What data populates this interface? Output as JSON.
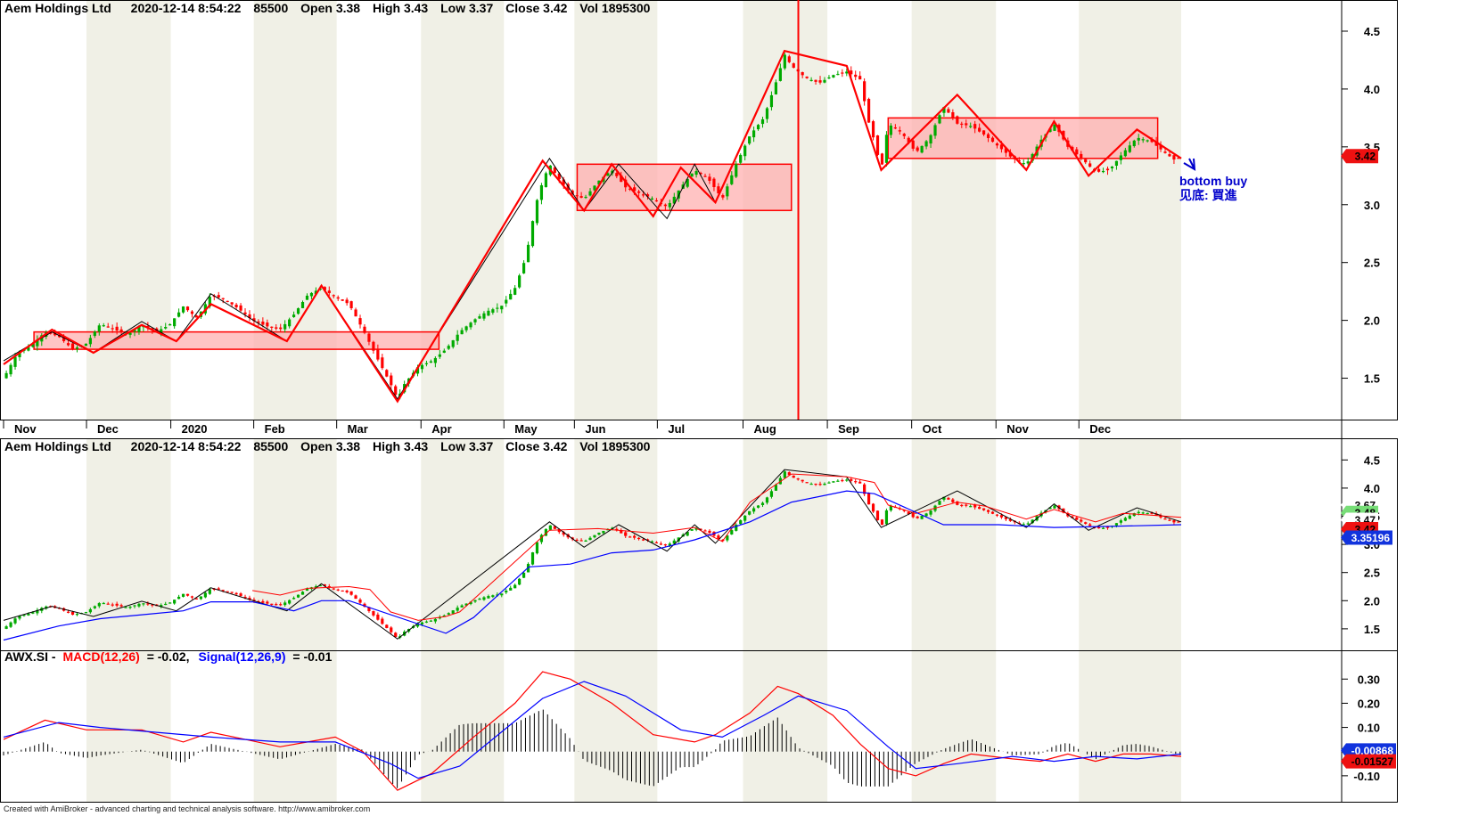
{
  "panes": {
    "price_header": {
      "name": "Aem Holdings Ltd",
      "datetime": "2020-12-14 8:54:22",
      "code": "85500",
      "open_label": "Open 3.38",
      "high_label": "High 3.43",
      "low_label": "Low 3.37",
      "close_label": "Close 3.42",
      "vol_label": "Vol 1895300"
    },
    "band_header": {
      "name": "Aem Holdings Ltd",
      "datetime": "2020-12-14 8:54:22",
      "code": "85500",
      "open_label": "Open 3.38",
      "high_label": "High 3.43",
      "low_label": "Low 3.37",
      "close_label": "Close 3.42",
      "vol_label": "Vol 1895300"
    },
    "macd_header": {
      "symbol": "AWX.SI -",
      "macd_label": "MACD(12,26)",
      "macd_value": "= -0.02,",
      "signal_label": "Signal(12,26,9)",
      "signal_value": "= -0.01"
    }
  },
  "annotation": {
    "line1": "bottom buy",
    "line2": "见底: 買進"
  },
  "footer": "Created with AmiBroker - advanced charting and technical analysis software. http://www.amibroker.com",
  "tags": {
    "price_last": "3.42",
    "band_values": [
      "3.67",
      "3.48",
      "3.48",
      "3.47",
      "3.42",
      "3.35196"
    ],
    "macd_values": [
      "-0.00868",
      "-0.01527"
    ]
  },
  "colors": {
    "up_candle": "#00aa00",
    "down_candle": "#ff0000",
    "zigzag_red": "#ff0000",
    "zigzag_black": "#000000",
    "box_fill": "#ffb0b0",
    "box_stroke": "#ff0000",
    "macd_line": "#ff0000",
    "signal_line": "#0000ff",
    "band_upper": "#ff0000",
    "band_lower": "#0000ff",
    "shade_alt": "#f0f0e6",
    "annotation": "#0000cc"
  },
  "chart_data": [
    {
      "type": "candlestick",
      "title": "Aem Holdings Ltd",
      "x_labels": [
        "Nov",
        "Dec",
        "2020",
        "Feb",
        "Mar",
        "Apr",
        "May",
        "Jun",
        "Jul",
        "Aug",
        "Sep",
        "Oct",
        "Nov",
        "Dec"
      ],
      "yticks": [
        1.5,
        2.0,
        2.5,
        3.0,
        3.5,
        4.0,
        4.5
      ],
      "ylim": [
        1.15,
        4.6
      ],
      "close_path": [
        [
          0,
          1.5
        ],
        [
          10,
          1.72
        ],
        [
          20,
          1.78
        ],
        [
          30,
          1.9
        ],
        [
          40,
          1.86
        ],
        [
          50,
          1.75
        ],
        [
          60,
          1.8
        ],
        [
          70,
          1.97
        ],
        [
          80,
          1.92
        ],
        [
          90,
          1.88
        ],
        [
          100,
          1.96
        ],
        [
          110,
          1.9
        ],
        [
          120,
          1.96
        ],
        [
          130,
          2.12
        ],
        [
          140,
          2.02
        ],
        [
          150,
          2.22
        ],
        [
          160,
          2.18
        ],
        [
          170,
          2.1
        ],
        [
          180,
          2.0
        ],
        [
          190,
          1.95
        ],
        [
          200,
          1.92
        ],
        [
          210,
          2.05
        ],
        [
          220,
          2.22
        ],
        [
          230,
          2.28
        ],
        [
          240,
          2.2
        ],
        [
          250,
          2.14
        ],
        [
          260,
          1.92
        ],
        [
          270,
          1.68
        ],
        [
          280,
          1.45
        ],
        [
          285,
          1.32
        ],
        [
          290,
          1.45
        ],
        [
          300,
          1.6
        ],
        [
          310,
          1.65
        ],
        [
          320,
          1.75
        ],
        [
          330,
          1.9
        ],
        [
          340,
          2.0
        ],
        [
          350,
          2.08
        ],
        [
          360,
          2.12
        ],
        [
          370,
          2.28
        ],
        [
          378,
          2.55
        ],
        [
          385,
          3.0
        ],
        [
          390,
          3.2
        ],
        [
          395,
          3.35
        ],
        [
          400,
          3.25
        ],
        [
          410,
          3.1
        ],
        [
          420,
          3.05
        ],
        [
          430,
          3.2
        ],
        [
          440,
          3.3
        ],
        [
          450,
          3.15
        ],
        [
          460,
          3.1
        ],
        [
          470,
          3.05
        ],
        [
          480,
          2.98
        ],
        [
          490,
          3.15
        ],
        [
          500,
          3.3
        ],
        [
          510,
          3.22
        ],
        [
          520,
          3.05
        ],
        [
          530,
          3.35
        ],
        [
          540,
          3.6
        ],
        [
          550,
          3.75
        ],
        [
          560,
          4.1
        ],
        [
          565,
          4.3
        ],
        [
          570,
          4.2
        ],
        [
          580,
          4.1
        ],
        [
          590,
          4.05
        ],
        [
          600,
          4.12
        ],
        [
          610,
          4.15
        ],
        [
          620,
          4.08
        ],
        [
          625,
          3.75
        ],
        [
          630,
          3.55
        ],
        [
          635,
          3.3
        ],
        [
          640,
          3.7
        ],
        [
          650,
          3.62
        ],
        [
          660,
          3.45
        ],
        [
          670,
          3.58
        ],
        [
          680,
          3.85
        ],
        [
          690,
          3.7
        ],
        [
          700,
          3.68
        ],
        [
          710,
          3.6
        ],
        [
          720,
          3.5
        ],
        [
          730,
          3.4
        ],
        [
          740,
          3.35
        ],
        [
          750,
          3.55
        ],
        [
          760,
          3.7
        ],
        [
          770,
          3.5
        ],
        [
          780,
          3.4
        ],
        [
          790,
          3.28
        ],
        [
          800,
          3.3
        ],
        [
          810,
          3.45
        ],
        [
          820,
          3.58
        ],
        [
          830,
          3.55
        ],
        [
          840,
          3.45
        ],
        [
          848,
          3.38
        ],
        [
          852,
          3.42
        ]
      ],
      "series": [
        {
          "name": "",
          "kind": "zigzag",
          "color": "red",
          "points": [
            [
              0,
              1.62
            ],
            [
              35,
              1.92
            ],
            [
              65,
              1.72
            ],
            [
              100,
              1.96
            ],
            [
              125,
              1.82
            ],
            [
              150,
              2.14
            ],
            [
              205,
              1.82
            ],
            [
              230,
              2.3
            ],
            [
              285,
              1.3
            ],
            [
              390,
              3.38
            ],
            [
              420,
              2.95
            ],
            [
              440,
              3.35
            ],
            [
              470,
              2.9
            ],
            [
              490,
              3.32
            ],
            [
              515,
              3.02
            ],
            [
              565,
              4.33
            ],
            [
              610,
              4.2
            ],
            [
              635,
              3.3
            ],
            [
              690,
              3.95
            ],
            [
              740,
              3.3
            ],
            [
              760,
              3.72
            ],
            [
              785,
              3.25
            ],
            [
              820,
              3.65
            ],
            [
              852,
              3.4
            ]
          ]
        },
        {
          "name": "",
          "kind": "zigzag",
          "color": "black",
          "points": [
            [
              0,
              1.65
            ],
            [
              35,
              1.9
            ],
            [
              65,
              1.72
            ],
            [
              100,
              1.99
            ],
            [
              125,
              1.82
            ],
            [
              150,
              2.23
            ],
            [
              205,
              1.82
            ],
            [
              230,
              2.3
            ],
            [
              285,
              1.32
            ],
            [
              395,
              3.4
            ],
            [
              420,
              2.95
            ],
            [
              445,
              3.35
            ],
            [
              480,
              2.88
            ],
            [
              500,
              3.35
            ],
            [
              515,
              3.02
            ],
            [
              565,
              4.33
            ],
            [
              610,
              4.2
            ],
            [
              635,
              3.3
            ],
            [
              690,
              3.95
            ],
            [
              740,
              3.3
            ],
            [
              760,
              3.72
            ],
            [
              785,
              3.25
            ],
            [
              820,
              3.65
            ],
            [
              852,
              3.4
            ]
          ]
        }
      ],
      "boxes": [
        {
          "x0": 22,
          "x1": 315,
          "y0": 1.75,
          "y1": 1.9
        },
        {
          "x0": 415,
          "x1": 570,
          "y0": 2.95,
          "y1": 3.35
        },
        {
          "x0": 640,
          "x1": 835,
          "y0": 3.4,
          "y1": 3.75
        }
      ],
      "vertical_marker_x": 575
    },
    {
      "type": "candlestick",
      "title": "Aem Holdings Ltd",
      "yticks": [
        1.5,
        2.0,
        2.5,
        3.0,
        3.5,
        4.0,
        4.5
      ],
      "ylim": [
        1.15,
        4.6
      ],
      "series": [
        {
          "name": "",
          "kind": "upper-band",
          "color": "red",
          "points": [
            [
              180,
              2.18
            ],
            [
              200,
              2.1
            ],
            [
              220,
              2.22
            ],
            [
              250,
              2.25
            ],
            [
              265,
              2.2
            ],
            [
              280,
              1.8
            ],
            [
              300,
              1.65
            ],
            [
              320,
              1.72
            ],
            [
              330,
              1.8
            ],
            [
              395,
              3.25
            ],
            [
              430,
              3.28
            ],
            [
              470,
              3.2
            ],
            [
              500,
              3.3
            ],
            [
              520,
              3.05
            ],
            [
              540,
              3.75
            ],
            [
              570,
              4.25
            ],
            [
              610,
              4.2
            ],
            [
              630,
              4.1
            ],
            [
              640,
              3.7
            ],
            [
              660,
              3.55
            ],
            [
              690,
              3.75
            ],
            [
              710,
              3.68
            ],
            [
              740,
              3.45
            ],
            [
              760,
              3.62
            ],
            [
              790,
              3.4
            ],
            [
              810,
              3.55
            ],
            [
              830,
              3.52
            ],
            [
              852,
              3.48
            ]
          ]
        },
        {
          "name": "",
          "kind": "lower-band",
          "color": "blue",
          "points": [
            [
              0,
              1.3
            ],
            [
              40,
              1.55
            ],
            [
              70,
              1.68
            ],
            [
              100,
              1.75
            ],
            [
              130,
              1.82
            ],
            [
              150,
              1.98
            ],
            [
              180,
              1.98
            ],
            [
              210,
              1.82
            ],
            [
              230,
              2.0
            ],
            [
              250,
              2.0
            ],
            [
              320,
              1.42
            ],
            [
              340,
              1.7
            ],
            [
              380,
              2.6
            ],
            [
              410,
              2.65
            ],
            [
              440,
              2.85
            ],
            [
              470,
              2.9
            ],
            [
              500,
              3.08
            ],
            [
              540,
              3.4
            ],
            [
              570,
              3.75
            ],
            [
              610,
              3.95
            ],
            [
              630,
              3.9
            ],
            [
              680,
              3.35
            ],
            [
              720,
              3.35
            ],
            [
              760,
              3.3
            ],
            [
              800,
              3.32
            ],
            [
              852,
              3.35
            ]
          ]
        }
      ]
    },
    {
      "type": "line",
      "title": "",
      "yticks": [
        -0.1,
        0.1,
        0.2,
        0.3
      ],
      "ylim": [
        -0.2,
        0.36
      ],
      "series": [
        {
          "name": "MACD(12,26)",
          "color": "red",
          "points": [
            [
              0,
              0.05
            ],
            [
              30,
              0.13
            ],
            [
              60,
              0.09
            ],
            [
              100,
              0.09
            ],
            [
              130,
              0.04
            ],
            [
              150,
              0.08
            ],
            [
              175,
              0.05
            ],
            [
              200,
              0.02
            ],
            [
              220,
              0.04
            ],
            [
              240,
              0.06
            ],
            [
              260,
              0.0
            ],
            [
              285,
              -0.16
            ],
            [
              310,
              -0.09
            ],
            [
              340,
              0.06
            ],
            [
              370,
              0.2
            ],
            [
              390,
              0.33
            ],
            [
              410,
              0.3
            ],
            [
              440,
              0.2
            ],
            [
              470,
              0.07
            ],
            [
              500,
              0.04
            ],
            [
              515,
              0.07
            ],
            [
              540,
              0.16
            ],
            [
              560,
              0.27
            ],
            [
              575,
              0.24
            ],
            [
              600,
              0.15
            ],
            [
              620,
              0.03
            ],
            [
              640,
              -0.07
            ],
            [
              660,
              -0.1
            ],
            [
              680,
              -0.05
            ],
            [
              700,
              -0.01
            ],
            [
              730,
              -0.03
            ],
            [
              750,
              -0.04
            ],
            [
              770,
              -0.01
            ],
            [
              790,
              -0.04
            ],
            [
              810,
              -0.01
            ],
            [
              830,
              -0.01
            ],
            [
              852,
              -0.02
            ]
          ]
        },
        {
          "name": "Signal(12,26,9)",
          "color": "blue",
          "points": [
            [
              0,
              0.06
            ],
            [
              40,
              0.12
            ],
            [
              70,
              0.1
            ],
            [
              110,
              0.08
            ],
            [
              150,
              0.06
            ],
            [
              200,
              0.04
            ],
            [
              240,
              0.04
            ],
            [
              280,
              -0.05
            ],
            [
              300,
              -0.11
            ],
            [
              330,
              -0.06
            ],
            [
              360,
              0.08
            ],
            [
              390,
              0.22
            ],
            [
              420,
              0.29
            ],
            [
              450,
              0.23
            ],
            [
              490,
              0.09
            ],
            [
              520,
              0.06
            ],
            [
              550,
              0.15
            ],
            [
              575,
              0.23
            ],
            [
              610,
              0.17
            ],
            [
              640,
              0.02
            ],
            [
              660,
              -0.07
            ],
            [
              690,
              -0.05
            ],
            [
              730,
              -0.02
            ],
            [
              760,
              -0.04
            ],
            [
              790,
              -0.02
            ],
            [
              820,
              -0.03
            ],
            [
              852,
              -0.01
            ]
          ]
        }
      ],
      "histogram_note": "MACD minus Signal"
    }
  ]
}
